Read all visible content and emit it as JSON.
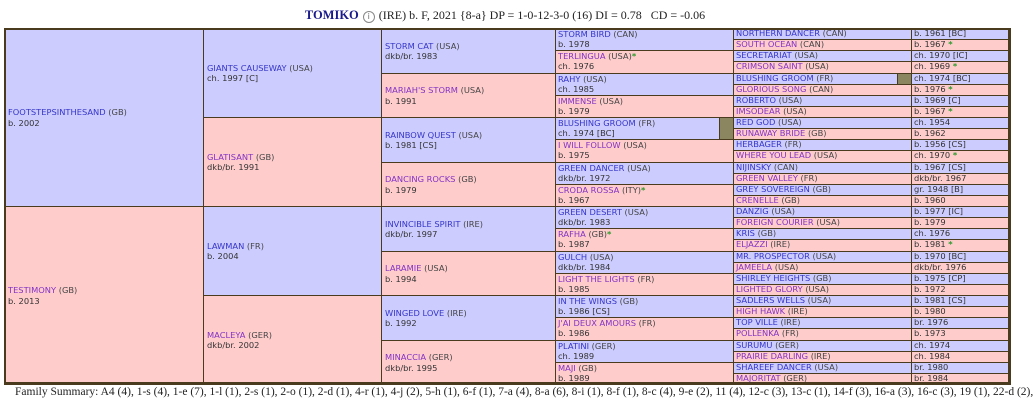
{
  "header": {
    "horse_name": "TOMIKO",
    "icon": "info-icon",
    "details": "(IRE) b. F, 2021 {8-a} DP = 1-0-12-3-0 (16) DI = 0.78   CD = -0.06"
  },
  "colors": {
    "sire_bg": "#ccccff",
    "dam_bg": "#ffcccc",
    "inbreeding_marker": "#8c8660",
    "star": "#2a9a2a"
  },
  "pedigree": {
    "gen1": [
      {
        "name": "FOOTSTEPSINTHESAND",
        "country": "(GB)",
        "info": "b. 2002"
      },
      {
        "name": "TESTIMONY",
        "country": "(GB)",
        "info": "b. 2013"
      }
    ],
    "gen2": [
      {
        "name": "GIANTS CAUSEWAY",
        "country": "(USA)",
        "info": "ch. 1997 [C]"
      },
      {
        "name": "GLATISANT",
        "country": "(GB)",
        "info": "dkb/br. 1991"
      },
      {
        "name": "LAWMAN",
        "country": "(FR)",
        "info": "b. 2004"
      },
      {
        "name": "MACLEYA",
        "country": "(GER)",
        "info": "dkb/br. 2002"
      }
    ],
    "gen3": [
      {
        "name": "STORM CAT",
        "country": "(USA)",
        "info": "dkb/br. 1983"
      },
      {
        "name": "MARIAH'S STORM",
        "country": "(USA)",
        "info": "b. 1991"
      },
      {
        "name": "RAINBOW QUEST",
        "country": "(USA)",
        "info": "b. 1981 [CS]"
      },
      {
        "name": "DANCING ROCKS",
        "country": "(GB)",
        "info": "b. 1979"
      },
      {
        "name": "INVINCIBLE SPIRIT",
        "country": "(IRE)",
        "info": "dkb/br. 1997"
      },
      {
        "name": "LARAMIE",
        "country": "(USA)",
        "info": "b. 1994"
      },
      {
        "name": "WINGED LOVE",
        "country": "(IRE)",
        "info": "b. 1992"
      },
      {
        "name": "MINACCIA",
        "country": "(GER)",
        "info": "dkb/br. 1995"
      }
    ],
    "gen4": [
      {
        "name": "STORM BIRD",
        "country": "(CAN)",
        "info": "b. 1978"
      },
      {
        "name": "TERLINGUA",
        "country": "(USA)",
        "star": "*",
        "info": "ch. 1976"
      },
      {
        "name": "RAHY",
        "country": "(USA)",
        "info": "ch. 1985"
      },
      {
        "name": "IMMENSE",
        "country": "(USA)",
        "info": "b. 1979"
      },
      {
        "name": "BLUSHING GROOM",
        "country": "(FR)",
        "info": "ch. 1974 [BC]",
        "inbred": true
      },
      {
        "name": "I WILL FOLLOW",
        "country": "(USA)",
        "info": "b. 1975"
      },
      {
        "name": "GREEN DANCER",
        "country": "(USA)",
        "info": "dkb/br. 1972"
      },
      {
        "name": "CRODA ROSSA",
        "country": "(ITY)",
        "star": "*",
        "info": "b. 1967"
      },
      {
        "name": "GREEN DESERT",
        "country": "(USA)",
        "info": "dkb/br. 1983"
      },
      {
        "name": "RAFHA",
        "country": "(GB)",
        "star": "*",
        "info": "b. 1987"
      },
      {
        "name": "GULCH",
        "country": "(USA)",
        "info": "dkb/br. 1984"
      },
      {
        "name": "LIGHT THE LIGHTS",
        "country": "(FR)",
        "info": "b. 1985"
      },
      {
        "name": "IN THE WINGS",
        "country": "(GB)",
        "info": "b. 1986 [CS]"
      },
      {
        "name": "J'AI DEUX AMOURS",
        "country": "(FR)",
        "info": "b. 1986"
      },
      {
        "name": "PLATINI",
        "country": "(GER)",
        "info": "ch. 1989"
      },
      {
        "name": "MAJI",
        "country": "(GB)",
        "info": "b. 1989"
      }
    ],
    "gen5": [
      {
        "name": "NORTHERN DANCER",
        "country": "(CAN)",
        "info": "b. 1961 [BC]"
      },
      {
        "name": "SOUTH OCEAN",
        "country": "(CAN)",
        "info": "b. 1967",
        "star": "*"
      },
      {
        "name": "SECRETARIAT",
        "country": "(USA)",
        "info": "ch. 1970 [IC]"
      },
      {
        "name": "CRIMSON SAINT",
        "country": "(USA)",
        "info": "ch. 1969",
        "star": "*"
      },
      {
        "name": "BLUSHING GROOM",
        "country": "(FR)",
        "info": "ch. 1974 [BC]",
        "inbred": true
      },
      {
        "name": "GLORIOUS SONG",
        "country": "(CAN)",
        "info": "b. 1976",
        "star": "*"
      },
      {
        "name": "ROBERTO",
        "country": "(USA)",
        "info": "b. 1969 [C]"
      },
      {
        "name": "IMSODEAR",
        "country": "(USA)",
        "info": "b. 1967",
        "star": "*"
      },
      {
        "name": "RED GOD",
        "country": "(USA)",
        "info": "ch. 1954"
      },
      {
        "name": "RUNAWAY BRIDE",
        "country": "(GB)",
        "info": "b. 1962"
      },
      {
        "name": "HERBAGER",
        "country": "(FR)",
        "info": "b. 1956 [CS]"
      },
      {
        "name": "WHERE YOU LEAD",
        "country": "(USA)",
        "info": "ch. 1970",
        "star": "*"
      },
      {
        "name": "NIJINSKY",
        "country": "(CAN)",
        "info": "b. 1967 [CS]"
      },
      {
        "name": "GREEN VALLEY",
        "country": "(FR)",
        "info": "dkb/br. 1967"
      },
      {
        "name": "GREY SOVEREIGN",
        "country": "(GB)",
        "info": "gr. 1948 [B]"
      },
      {
        "name": "CRENELLE",
        "country": "(GB)",
        "info": "b. 1960"
      },
      {
        "name": "DANZIG",
        "country": "(USA)",
        "info": "b. 1977 [IC]"
      },
      {
        "name": "FOREIGN COURIER",
        "country": "(USA)",
        "info": "b. 1979"
      },
      {
        "name": "KRIS",
        "country": "(GB)",
        "info": "ch. 1976"
      },
      {
        "name": "ELJAZZI",
        "country": "(IRE)",
        "info": "b. 1981",
        "star": "*"
      },
      {
        "name": "MR. PROSPECTOR",
        "country": "(USA)",
        "info": "b. 1970 [BC]"
      },
      {
        "name": "JAMEELA",
        "country": "(USA)",
        "info": "dkb/br. 1976"
      },
      {
        "name": "SHIRLEY HEIGHTS",
        "country": "(GB)",
        "info": "b. 1975 [CP]"
      },
      {
        "name": "LIGHTED GLORY",
        "country": "(USA)",
        "info": "b. 1972"
      },
      {
        "name": "SADLERS WELLS",
        "country": "(USA)",
        "info": "b. 1981 [CS]"
      },
      {
        "name": "HIGH HAWK",
        "country": "(IRE)",
        "info": "b. 1980"
      },
      {
        "name": "TOP VILLE",
        "country": "(IRE)",
        "info": "br. 1976"
      },
      {
        "name": "POLLENKA",
        "country": "(FR)",
        "info": "b. 1973"
      },
      {
        "name": "SURUMU",
        "country": "(GER)",
        "info": "ch. 1974"
      },
      {
        "name": "PRAIRIE DARLING",
        "country": "(IRE)",
        "info": "ch. 1984"
      },
      {
        "name": "SHAREEF DANCER",
        "country": "(USA)",
        "info": "br. 1980"
      },
      {
        "name": "MAJORITAT",
        "country": "(GER)",
        "info": "br. 1984"
      }
    ]
  },
  "family_summary": "Family Summary: A4 (4), 1-s (4), 1-e (7), 1-l (1), 2-s (1), 2-o (1), 2-d (1), 4-r (1), 4-j (2), 5-h (1), 6-f (1), 7-a (4), 8-a (6), 8-i (1), 8-f (1), 8-c (4), 9-e (2), 11 (4), 12-c (3), 13-c (1), 14-f (3), 16-a (3), 16-c (3), 19 (1), 22-d (2),"
}
